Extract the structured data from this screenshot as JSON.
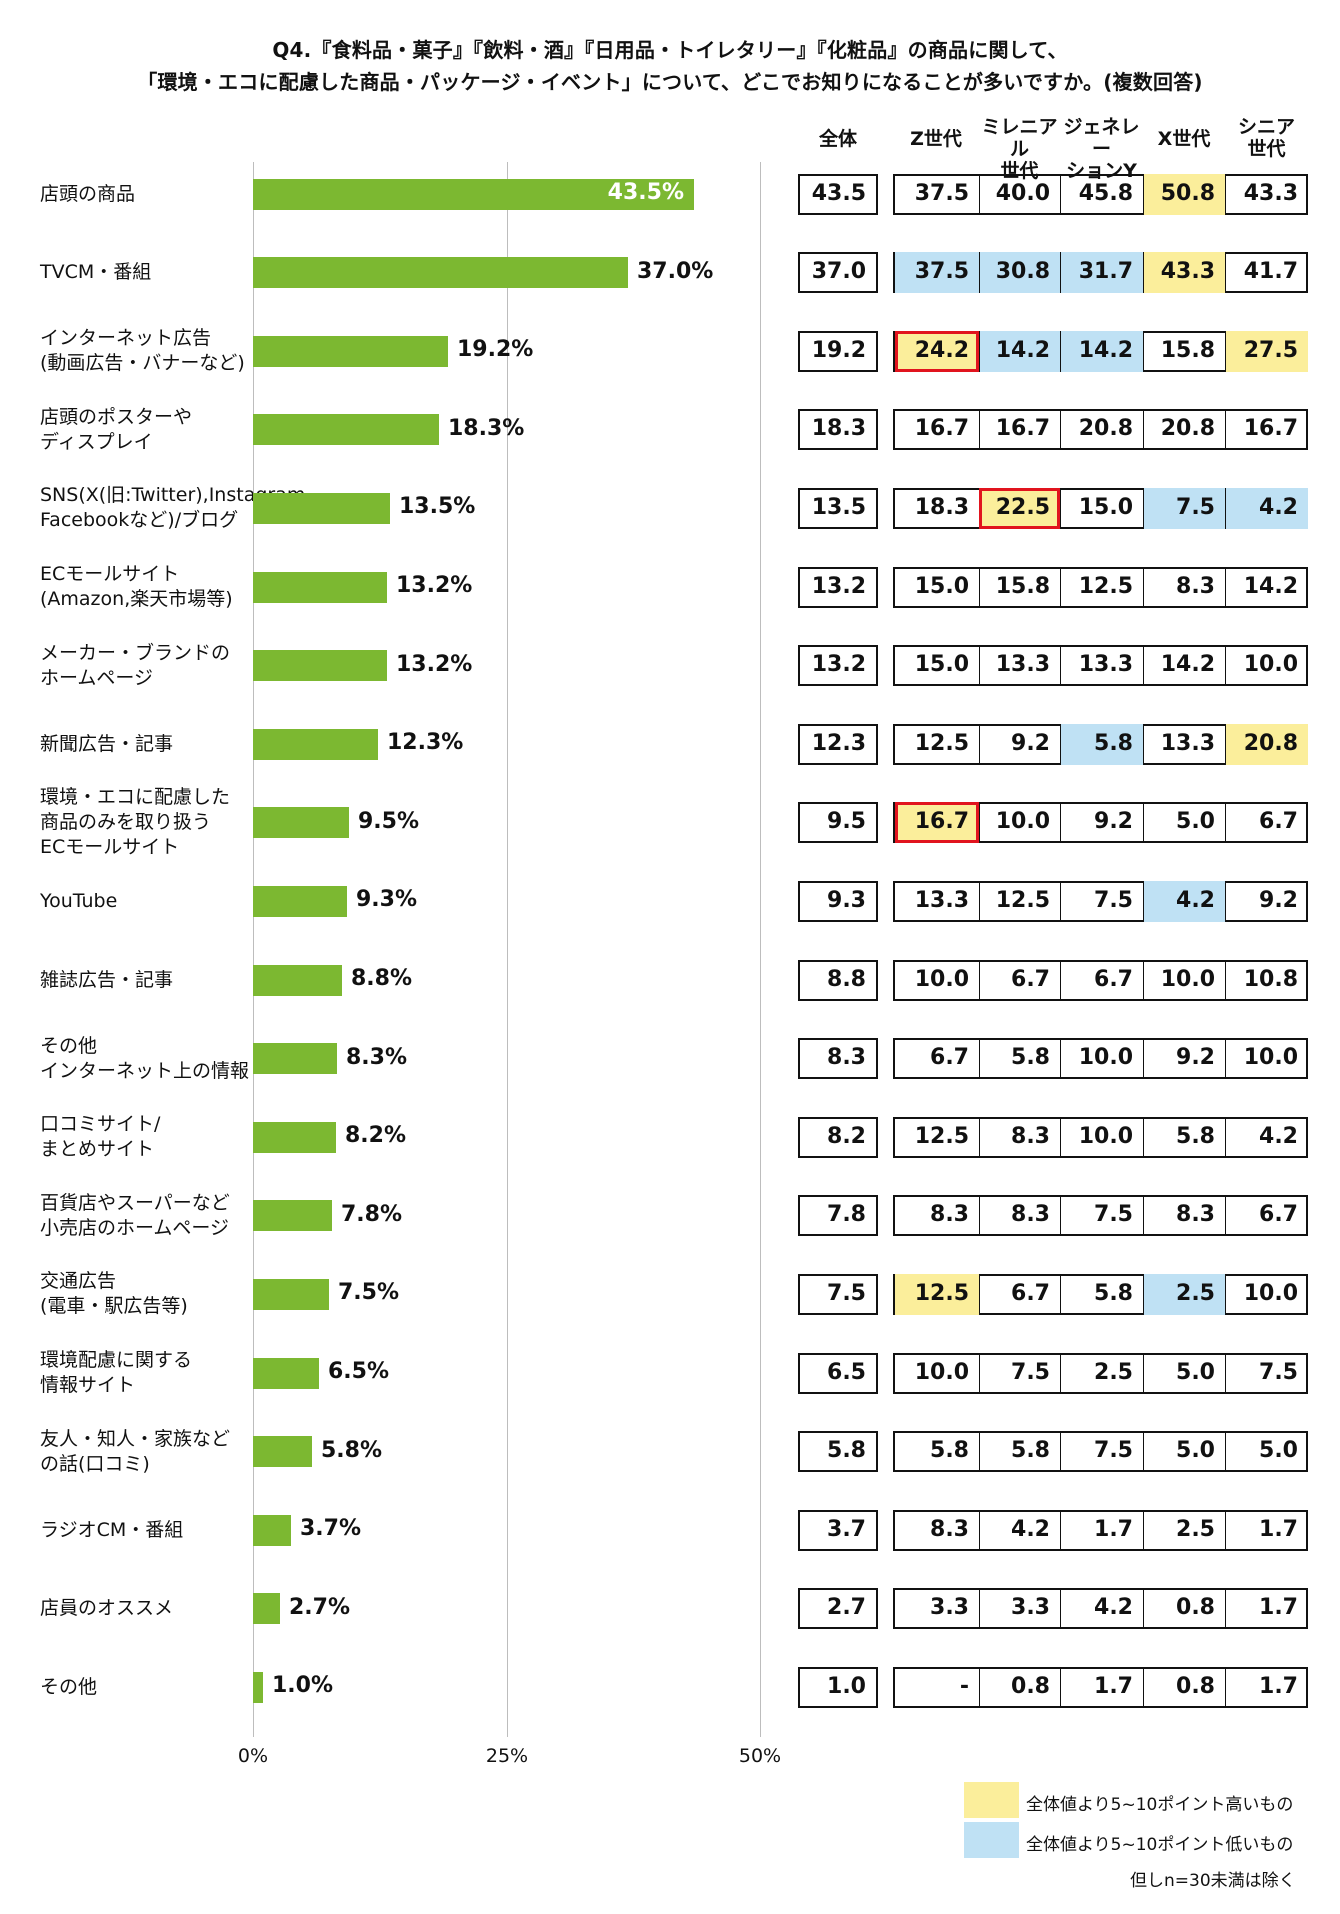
{
  "title_line1": "Q4.『食料品・菓子』『飲料・酒』『日用品・トイレタリー』『化粧品』の商品に関して、",
  "title_line2": "「環境・エコに配慮した商品・パッケージ・イベント」について、どこでお知りになることが多いですか。(複数回答)",
  "colors": {
    "bar": "#7cb831",
    "highlight_high": "#fbee9b",
    "highlight_low": "#bfe1f4",
    "red_frame": "#e1141e"
  },
  "chart_data": {
    "type": "bar",
    "orientation": "horizontal",
    "xlim": [
      0,
      50
    ],
    "x_ticks": [
      "0%",
      "25%",
      "50%"
    ],
    "grid": true,
    "categories": [
      "店頭の商品",
      "TVCM・番組",
      "インターネット広告\n(動画広告・バナーなど)",
      "店頭のポスターや\nディスプレイ",
      "SNS(X(旧:Twitter),Instagram,\nFacebookなど)/ブログ",
      "ECモールサイト\n(Amazon,楽天市場等)",
      "メーカー・ブランドの\nホームページ",
      "新聞広告・記事",
      "環境・エコに配慮した\n商品のみを取り扱う\nECモールサイト",
      "YouTube",
      "雑誌広告・記事",
      "その他\nインターネット上の情報",
      "口コミサイト/\nまとめサイト",
      "百貨店やスーパーなど\n小売店のホームページ",
      "交通広告\n(電車・駅広告等)",
      "環境配慮に関する\n情報サイト",
      "友人・知人・家族など\nの話(口コミ)",
      "ラジオCM・番組",
      "店員のオススメ",
      "その他"
    ],
    "values": [
      43.5,
      37.0,
      19.2,
      18.3,
      13.5,
      13.2,
      13.2,
      12.3,
      9.5,
      9.3,
      8.8,
      8.3,
      8.2,
      7.8,
      7.5,
      6.5,
      5.8,
      3.7,
      2.7,
      1.0
    ],
    "value_labels": [
      "43.5%",
      "37.0%",
      "19.2%",
      "18.3%",
      "13.5%",
      "13.2%",
      "13.2%",
      "12.3%",
      "9.5%",
      "9.3%",
      "8.8%",
      "8.3%",
      "8.2%",
      "7.8%",
      "7.5%",
      "6.5%",
      "5.8%",
      "3.7%",
      "2.7%",
      "1.0%"
    ]
  },
  "table": {
    "total_header": "全体",
    "generation_headers": [
      "Z世代",
      "ミレニアル\n世代",
      "ジェネレー\nションY",
      "X世代",
      "シニア\n世代"
    ],
    "rows": [
      {
        "total": "43.5",
        "cells": [
          "37.5",
          "40.0",
          "45.8",
          "50.8",
          "43.3"
        ],
        "hl": [
          "",
          "",
          "",
          "hi",
          ""
        ],
        "red": [
          false,
          false,
          false,
          false,
          false
        ]
      },
      {
        "total": "37.0",
        "cells": [
          "37.5",
          "30.8",
          "31.7",
          "43.3",
          "41.7"
        ],
        "hl": [
          "lo",
          "lo",
          "lo",
          "hi",
          ""
        ],
        "red": [
          false,
          false,
          false,
          false,
          false
        ]
      },
      {
        "total": "19.2",
        "cells": [
          "24.2",
          "14.2",
          "14.2",
          "15.8",
          "27.5"
        ],
        "hl": [
          "hi",
          "lo",
          "lo",
          "",
          "hi"
        ],
        "red": [
          true,
          false,
          false,
          false,
          false
        ]
      },
      {
        "total": "18.3",
        "cells": [
          "16.7",
          "16.7",
          "20.8",
          "20.8",
          "16.7"
        ],
        "hl": [
          "",
          "",
          "",
          "",
          ""
        ],
        "red": [
          false,
          false,
          false,
          false,
          false
        ]
      },
      {
        "total": "13.5",
        "cells": [
          "18.3",
          "22.5",
          "15.0",
          "7.5",
          "4.2"
        ],
        "hl": [
          "",
          "hi",
          "",
          "lo",
          "lo"
        ],
        "red": [
          false,
          true,
          false,
          false,
          false
        ]
      },
      {
        "total": "13.2",
        "cells": [
          "15.0",
          "15.8",
          "12.5",
          "8.3",
          "14.2"
        ],
        "hl": [
          "",
          "",
          "",
          "",
          ""
        ],
        "red": [
          false,
          false,
          false,
          false,
          false
        ]
      },
      {
        "total": "13.2",
        "cells": [
          "15.0",
          "13.3",
          "13.3",
          "14.2",
          "10.0"
        ],
        "hl": [
          "",
          "",
          "",
          "",
          ""
        ],
        "red": [
          false,
          false,
          false,
          false,
          false
        ]
      },
      {
        "total": "12.3",
        "cells": [
          "12.5",
          "9.2",
          "5.8",
          "13.3",
          "20.8"
        ],
        "hl": [
          "",
          "",
          "lo",
          "",
          "hi"
        ],
        "red": [
          false,
          false,
          false,
          false,
          false
        ]
      },
      {
        "total": "9.5",
        "cells": [
          "16.7",
          "10.0",
          "9.2",
          "5.0",
          "6.7"
        ],
        "hl": [
          "hi",
          "",
          "",
          "",
          ""
        ],
        "red": [
          true,
          false,
          false,
          false,
          false
        ]
      },
      {
        "total": "9.3",
        "cells": [
          "13.3",
          "12.5",
          "7.5",
          "4.2",
          "9.2"
        ],
        "hl": [
          "",
          "",
          "",
          "lo",
          ""
        ],
        "red": [
          false,
          false,
          false,
          false,
          false
        ]
      },
      {
        "total": "8.8",
        "cells": [
          "10.0",
          "6.7",
          "6.7",
          "10.0",
          "10.8"
        ],
        "hl": [
          "",
          "",
          "",
          "",
          ""
        ],
        "red": [
          false,
          false,
          false,
          false,
          false
        ]
      },
      {
        "total": "8.3",
        "cells": [
          "6.7",
          "5.8",
          "10.0",
          "9.2",
          "10.0"
        ],
        "hl": [
          "",
          "",
          "",
          "",
          ""
        ],
        "red": [
          false,
          false,
          false,
          false,
          false
        ]
      },
      {
        "total": "8.2",
        "cells": [
          "12.5",
          "8.3",
          "10.0",
          "5.8",
          "4.2"
        ],
        "hl": [
          "",
          "",
          "",
          "",
          ""
        ],
        "red": [
          false,
          false,
          false,
          false,
          false
        ]
      },
      {
        "total": "7.8",
        "cells": [
          "8.3",
          "8.3",
          "7.5",
          "8.3",
          "6.7"
        ],
        "hl": [
          "",
          "",
          "",
          "",
          ""
        ],
        "red": [
          false,
          false,
          false,
          false,
          false
        ]
      },
      {
        "total": "7.5",
        "cells": [
          "12.5",
          "6.7",
          "5.8",
          "2.5",
          "10.0"
        ],
        "hl": [
          "hi",
          "",
          "",
          "lo",
          ""
        ],
        "red": [
          false,
          false,
          false,
          false,
          false
        ]
      },
      {
        "total": "6.5",
        "cells": [
          "10.0",
          "7.5",
          "2.5",
          "5.0",
          "7.5"
        ],
        "hl": [
          "",
          "",
          "",
          "",
          ""
        ],
        "red": [
          false,
          false,
          false,
          false,
          false
        ]
      },
      {
        "total": "5.8",
        "cells": [
          "5.8",
          "5.8",
          "7.5",
          "5.0",
          "5.0"
        ],
        "hl": [
          "",
          "",
          "",
          "",
          ""
        ],
        "red": [
          false,
          false,
          false,
          false,
          false
        ]
      },
      {
        "total": "3.7",
        "cells": [
          "8.3",
          "4.2",
          "1.7",
          "2.5",
          "1.7"
        ],
        "hl": [
          "",
          "",
          "",
          "",
          ""
        ],
        "red": [
          false,
          false,
          false,
          false,
          false
        ]
      },
      {
        "total": "2.7",
        "cells": [
          "3.3",
          "3.3",
          "4.2",
          "0.8",
          "1.7"
        ],
        "hl": [
          "",
          "",
          "",
          "",
          ""
        ],
        "red": [
          false,
          false,
          false,
          false,
          false
        ]
      },
      {
        "total": "1.0",
        "cells": [
          "-",
          "0.8",
          "1.7",
          "0.8",
          "1.7"
        ],
        "hl": [
          "",
          "",
          "",
          "",
          ""
        ],
        "red": [
          false,
          false,
          false,
          false,
          false
        ]
      }
    ]
  },
  "legend": {
    "high": "全体値より5~10ポイント高いもの",
    "low": "全体値より5~10ポイント低いもの",
    "note": "但しn=30未満は除く"
  }
}
